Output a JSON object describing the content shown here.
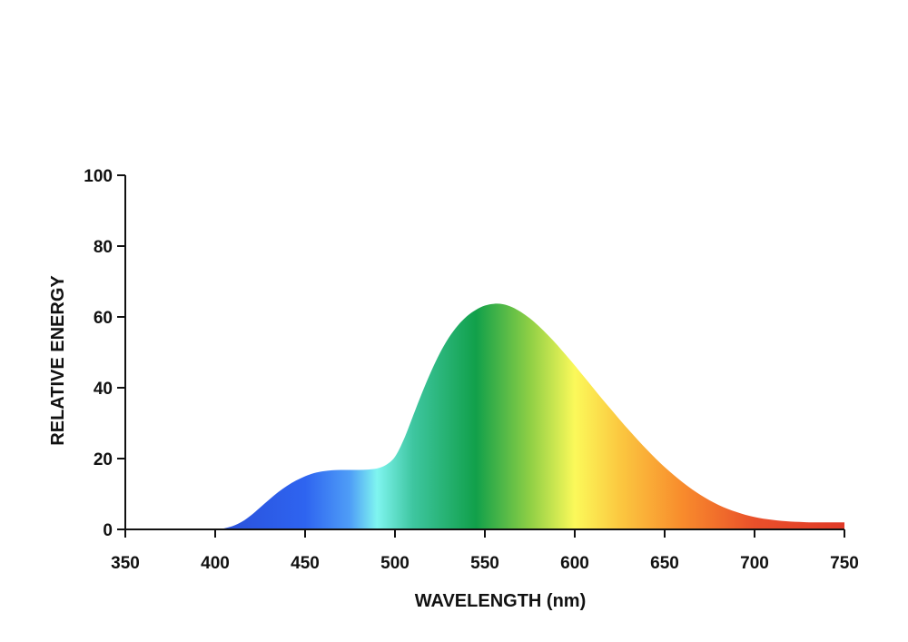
{
  "chart_data": {
    "type": "area",
    "title": "",
    "xlabel": "WAVELENGTH (nm)",
    "ylabel": "RELATIVE ENERGY",
    "xlim": [
      350,
      750
    ],
    "ylim": [
      0,
      100
    ],
    "x_ticks": [
      350,
      400,
      450,
      500,
      550,
      600,
      650,
      700,
      750
    ],
    "y_ticks": [
      0,
      20,
      40,
      60,
      80,
      100
    ],
    "grid": false,
    "legend": "none",
    "series": [
      {
        "x": [
          350,
          400,
          405,
          410,
          415,
          420,
          425,
          430,
          435,
          440,
          445,
          450,
          455,
          460,
          465,
          470,
          475,
          480,
          485,
          490,
          495,
          500,
          505,
          510,
          515,
          520,
          525,
          530,
          535,
          540,
          545,
          550,
          555,
          560,
          565,
          570,
          575,
          580,
          585,
          590,
          595,
          600,
          605,
          610,
          615,
          620,
          625,
          630,
          635,
          640,
          645,
          650,
          655,
          660,
          665,
          670,
          675,
          680,
          685,
          690,
          695,
          700,
          705,
          710,
          715,
          720,
          725,
          730,
          735,
          740,
          745,
          750
        ],
        "values": [
          0,
          0,
          0.3,
          1.0,
          2.2,
          4.0,
          6.2,
          8.4,
          10.5,
          12.3,
          13.8,
          15.0,
          15.9,
          16.4,
          16.7,
          16.8,
          16.8,
          16.8,
          16.9,
          17.2,
          18.2,
          20.5,
          25.5,
          32.0,
          38.5,
          44.5,
          49.8,
          54.2,
          57.6,
          60.2,
          62.0,
          63.2,
          63.7,
          63.6,
          62.8,
          61.4,
          59.6,
          57.4,
          54.9,
          52.2,
          49.3,
          46.3,
          43.2,
          40.1,
          37.0,
          34.0,
          31.0,
          28.1,
          25.3,
          22.6,
          20.0,
          17.6,
          15.4,
          13.3,
          11.4,
          9.7,
          8.2,
          6.9,
          5.8,
          4.9,
          4.1,
          3.5,
          3.0,
          2.7,
          2.4,
          2.2,
          2.1,
          2.0,
          2.0,
          2.0,
          2.0,
          2.0
        ]
      }
    ],
    "colors": {
      "axis": "#111111",
      "spectrum_stops": [
        {
          "nm": 400,
          "color": "#2a4fd8"
        },
        {
          "nm": 450,
          "color": "#2e64f0"
        },
        {
          "nm": 475,
          "color": "#4f9ef7"
        },
        {
          "nm": 490,
          "color": "#7ff5f0"
        },
        {
          "nm": 510,
          "color": "#3ec6a0"
        },
        {
          "nm": 545,
          "color": "#11a04a"
        },
        {
          "nm": 575,
          "color": "#8ecf45"
        },
        {
          "nm": 600,
          "color": "#fbf95a"
        },
        {
          "nm": 625,
          "color": "#fbc840"
        },
        {
          "nm": 660,
          "color": "#f88b2c"
        },
        {
          "nm": 700,
          "color": "#e9502a"
        },
        {
          "nm": 750,
          "color": "#e03a28"
        }
      ]
    }
  }
}
